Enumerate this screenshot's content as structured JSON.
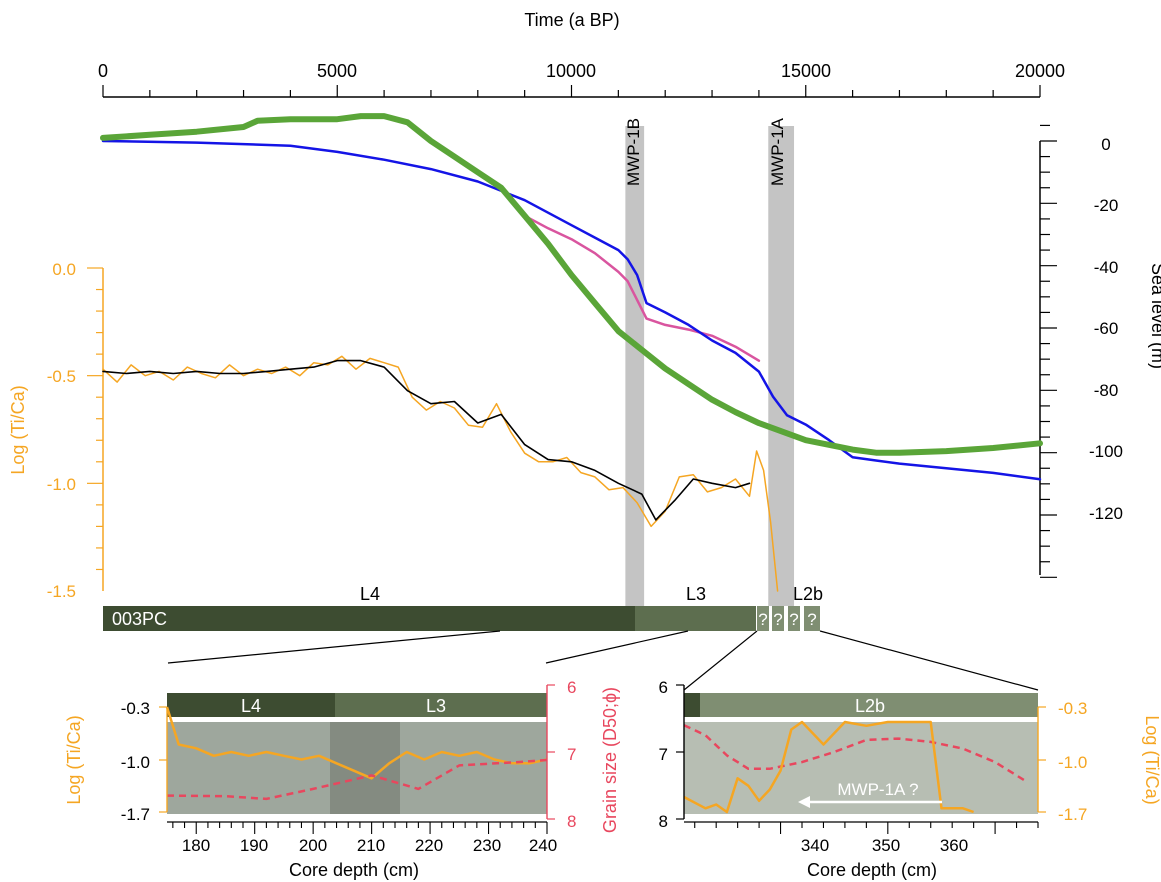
{
  "colors": {
    "orange": "#f5a623",
    "green": "#5aa538",
    "blue": "#1414e6",
    "magenta": "#d9559f",
    "red": "#e8475e",
    "mwp_band": "#c4c4c4",
    "unit_L4": "#3d4c31",
    "unit_L3": "#5d6e4f",
    "unit_L2b": "#7f8e72",
    "core_photo": "#9ea79d"
  },
  "top_axis": {
    "title": "Time (a BP)",
    "ticks": [
      "0",
      "5000",
      "10000",
      "15000",
      "20000"
    ]
  },
  "right_axis": {
    "title": "Sea level (m)",
    "ticks": [
      "0",
      "-20",
      "-40",
      "-60",
      "-80",
      "-100",
      "-120"
    ]
  },
  "left_axis": {
    "title": "Log (Ti/Ca)",
    "ticks": [
      "0.0",
      "-0.5",
      "-1.0",
      "-1.5"
    ]
  },
  "mwp_labels": [
    "MWP-1B",
    "MWP-1A"
  ],
  "core_bar": {
    "name": "003PC",
    "units": [
      "L4",
      "L3",
      "L2b"
    ],
    "qmarks": [
      "?",
      "?",
      "?",
      "?"
    ]
  },
  "inset_left": {
    "units": [
      "L4",
      "L3"
    ],
    "left_axis_title": "Log (Ti/Ca)",
    "left_ticks": [
      "-0.3",
      "-1.0",
      "-1.7"
    ],
    "right_axis_title": "Grain size (D50;ϕ)",
    "right_ticks": [
      "6",
      "7",
      "8"
    ],
    "x_ticks": [
      "180",
      "190",
      "200",
      "210",
      "220",
      "230",
      "240"
    ],
    "x_title": "Core depth (cm)"
  },
  "inset_right": {
    "units": [
      "L2b"
    ],
    "left_ticks": [
      "6",
      "7",
      "8"
    ],
    "right_axis_title": "Log (Ti/Ca)",
    "right_ticks": [
      "-0.3",
      "-1.0",
      "-1.7"
    ],
    "x_ticks": [
      "340",
      "350",
      "360"
    ],
    "x_title": "Core depth (cm)",
    "annotation": "MWP-1A ?"
  },
  "chart_data": [
    {
      "type": "line",
      "title": "",
      "xlabel": "Time (a BP)",
      "ylabel": "Sea level (m)",
      "xlim": [
        0,
        20000
      ],
      "ylim": [
        -140,
        5
      ],
      "bands": [
        {
          "label": "MWP-1B",
          "x": [
            11150,
            11550
          ]
        },
        {
          "label": "MWP-1A",
          "x": [
            14200,
            14750
          ]
        }
      ],
      "series": [
        {
          "color": "green",
          "x": [
            0,
            1000,
            2000,
            3000,
            3300,
            4000,
            5000,
            5500,
            6000,
            6500,
            7000,
            7500,
            8000,
            8500,
            9000,
            9500,
            10000,
            10500,
            11000,
            11500,
            12000,
            12500,
            13000,
            13500,
            14000,
            15000,
            16000,
            16500,
            17000,
            18000,
            19000,
            20000
          ],
          "y": [
            1,
            2,
            3,
            4.5,
            6.5,
            7,
            7,
            8,
            8,
            6,
            0,
            -5,
            -10,
            -15,
            -24,
            -33,
            -43,
            -52,
            -61,
            -67,
            -73,
            -78,
            -83,
            -87,
            -90.5,
            -96,
            -99,
            -100,
            -100,
            -99.5,
            -98.5,
            -97
          ]
        },
        {
          "color": "blue",
          "x": [
            0,
            2000,
            4000,
            5000,
            6000,
            7000,
            8000,
            9000,
            9500,
            10000,
            10500,
            11000,
            11200,
            11400,
            11600,
            12000,
            12500,
            13000,
            13500,
            14000,
            14300,
            14600,
            15000,
            15500,
            16000,
            16500,
            17000,
            18000,
            19000,
            20000
          ],
          "y": [
            0,
            -0.5,
            -1.5,
            -3.5,
            -6,
            -9,
            -13,
            -19,
            -23,
            -27,
            -31,
            -35,
            -38,
            -43,
            -52,
            -55,
            -59,
            -64,
            -68,
            -74,
            -82,
            -88,
            -91,
            -96,
            -101.5,
            -102.5,
            -103.5,
            -105,
            -106.5,
            -108.5
          ]
        },
        {
          "color": "magenta",
          "x": [
            9000,
            9500,
            10000,
            10500,
            11000,
            11200,
            11400,
            11600,
            12000,
            12500,
            13000,
            13500,
            14000
          ],
          "y": [
            -24,
            -28,
            -31.5,
            -36,
            -42,
            -45,
            -51,
            -57,
            -59,
            -60.5,
            -62.5,
            -66,
            -70.5
          ]
        },
        {
          "color": "orange",
          "axis": "Log (Ti/Ca)",
          "x": [
            0,
            300,
            600,
            900,
            1200,
            1500,
            1800,
            2100,
            2400,
            2700,
            3000,
            3300,
            3600,
            3900,
            4200,
            4500,
            4800,
            5100,
            5400,
            5700,
            6000,
            6300,
            6600,
            6900,
            7200,
            7500,
            7800,
            8100,
            8400,
            8700,
            9000,
            9300,
            9600,
            9900,
            10200,
            10500,
            10800,
            11100,
            11400,
            11700,
            12000,
            12300,
            12600,
            12900,
            13200,
            13500,
            13800,
            13950,
            14100,
            14250,
            14400
          ],
          "y": [
            -0.47,
            -0.53,
            -0.45,
            -0.5,
            -0.48,
            -0.52,
            -0.46,
            -0.49,
            -0.51,
            -0.45,
            -0.5,
            -0.47,
            -0.49,
            -0.46,
            -0.5,
            -0.44,
            -0.45,
            -0.41,
            -0.47,
            -0.42,
            -0.44,
            -0.46,
            -0.6,
            -0.66,
            -0.62,
            -0.65,
            -0.73,
            -0.74,
            -0.63,
            -0.76,
            -0.86,
            -0.9,
            -0.9,
            -0.88,
            -0.95,
            -0.97,
            -1.03,
            -1.02,
            -1.09,
            -1.2,
            -1.13,
            -0.97,
            -0.96,
            -1.04,
            -1.02,
            -0.98,
            -1.06,
            -0.85,
            -0.94,
            -1.18,
            -1.5
          ]
        },
        {
          "color": "black",
          "axis": "Log (Ti/Ca)",
          "x": [
            0,
            500,
            1000,
            1500,
            2000,
            2500,
            3000,
            3500,
            4000,
            4500,
            5000,
            5500,
            6000,
            6500,
            7000,
            7500,
            8000,
            8500,
            9000,
            9500,
            10000,
            10500,
            11000,
            11500,
            11800,
            12200,
            12600,
            13000,
            13500,
            13800
          ],
          "y": [
            -0.48,
            -0.49,
            -0.48,
            -0.49,
            -0.48,
            -0.49,
            -0.49,
            -0.48,
            -0.47,
            -0.46,
            -0.43,
            -0.43,
            -0.46,
            -0.57,
            -0.63,
            -0.62,
            -0.72,
            -0.68,
            -0.82,
            -0.89,
            -0.9,
            -0.94,
            -1.0,
            -1.05,
            -1.17,
            -1.08,
            -0.98,
            -1.0,
            -1.02,
            -1.0
          ]
        }
      ]
    },
    {
      "type": "line",
      "title": "",
      "xlabel": "Core depth (cm)",
      "xlim": [
        175,
        240
      ],
      "series": [
        {
          "color": "orange",
          "axis": "Log (Ti/Ca)",
          "ylim": [
            -1.7,
            -0.3
          ],
          "x": [
            175,
            177,
            180,
            183,
            186,
            189,
            192,
            195,
            198,
            201,
            204,
            207,
            210,
            213,
            216,
            219,
            222,
            225,
            228,
            231,
            234,
            237,
            240
          ],
          "y": [
            -0.3,
            -0.8,
            -0.85,
            -0.95,
            -0.9,
            -0.95,
            -0.9,
            -0.95,
            -1.0,
            -0.95,
            -1.05,
            -1.15,
            -1.25,
            -1.05,
            -0.9,
            -1.0,
            -0.9,
            -0.95,
            -0.9,
            -1.0,
            -1.05,
            -1.05,
            -1.0
          ]
        },
        {
          "color": "red",
          "axis": "Grain size (D50;ϕ)",
          "ylim": [
            6,
            8
          ],
          "x": [
            175,
            185,
            192,
            200,
            210,
            218,
            225,
            235,
            240
          ],
          "y": [
            7.65,
            7.66,
            7.7,
            7.55,
            7.35,
            7.55,
            7.2,
            7.15,
            7.12
          ]
        }
      ]
    },
    {
      "type": "line",
      "title": "",
      "xlabel": "Core depth (cm)",
      "xlim": [
        331,
        364
      ],
      "series": [
        {
          "color": "red",
          "axis": "Grain size (D50;ϕ)",
          "ylim": [
            6,
            8
          ],
          "x": [
            331,
            333,
            335,
            337,
            339,
            342,
            345,
            348,
            351,
            354,
            357,
            360,
            363
          ],
          "y": [
            6.6,
            6.75,
            7.05,
            7.25,
            7.25,
            7.15,
            7.0,
            6.82,
            6.8,
            6.85,
            6.95,
            7.15,
            7.45
          ]
        },
        {
          "color": "orange",
          "axis": "Log (Ti/Ca)",
          "ylim": [
            -1.7,
            -0.3
          ],
          "x": [
            331,
            333,
            334,
            335,
            336,
            337,
            338,
            339,
            340,
            341,
            342,
            344,
            346,
            348,
            350,
            352,
            354,
            355,
            357,
            358
          ],
          "y": [
            -1.5,
            -1.65,
            -1.6,
            -1.7,
            -1.25,
            -1.35,
            -1.55,
            -1.4,
            -1.15,
            -0.6,
            -0.5,
            -0.8,
            -0.5,
            -0.55,
            -0.5,
            -0.5,
            -0.5,
            -1.65,
            -1.65,
            -1.7
          ]
        }
      ]
    }
  ]
}
